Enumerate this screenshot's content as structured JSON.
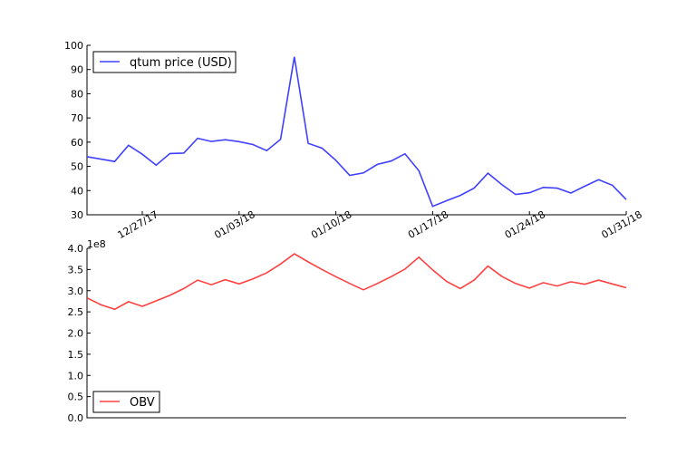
{
  "chart_data": [
    {
      "type": "line",
      "series": [
        {
          "name": "qtum price (USD)",
          "color": "#4040ff",
          "values": [
            54,
            53,
            52,
            58.7,
            55,
            50.5,
            55.3,
            55.5,
            61.6,
            60.3,
            61,
            60.2,
            59,
            56.5,
            61.2,
            95.2,
            59.5,
            57.5,
            52.5,
            46.3,
            47.3,
            50.8,
            52.2,
            55.2,
            48.2,
            33.5,
            35.8,
            38,
            41,
            47.2,
            42.5,
            38.4,
            39.1,
            41.3,
            41,
            39,
            41.8,
            44.5,
            42.2,
            36.3
          ]
        }
      ],
      "ylim": [
        30,
        100
      ],
      "yticks": [
        "30",
        "40",
        "50",
        "60",
        "70",
        "80",
        "90",
        "100"
      ],
      "xticks": [
        {
          "day": 4,
          "label": "12/27/17"
        },
        {
          "day": 11,
          "label": "01/03/18"
        },
        {
          "day": 18,
          "label": "01/10/18"
        },
        {
          "day": 25,
          "label": "01/17/18"
        },
        {
          "day": 32,
          "label": "01/24/18"
        },
        {
          "day": 39,
          "label": "01/31/18"
        }
      ],
      "legend": "upper-left",
      "grid": false
    },
    {
      "type": "line",
      "series": [
        {
          "name": "OBV",
          "color": "#ff4040",
          "values": [
            2.83,
            2.67,
            2.56,
            2.74,
            2.63,
            2.76,
            2.89,
            3.05,
            3.25,
            3.14,
            3.26,
            3.16,
            3.28,
            3.42,
            3.63,
            3.87,
            3.68,
            3.5,
            3.33,
            3.17,
            3.02,
            3.17,
            3.33,
            3.51,
            3.79,
            3.49,
            3.22,
            3.05,
            3.25,
            3.58,
            3.34,
            3.17,
            3.06,
            3.19,
            3.11,
            3.21,
            3.15,
            3.25,
            3.16,
            3.07
          ]
        }
      ],
      "ylim": [
        0,
        4.0
      ],
      "yticks": [
        "0.0",
        "0.5",
        "1.0",
        "1.5",
        "2.0",
        "2.5",
        "3.0",
        "3.5",
        "4.0"
      ],
      "yoffset_label": "1e8",
      "legend": "lower-left",
      "grid": false
    }
  ]
}
